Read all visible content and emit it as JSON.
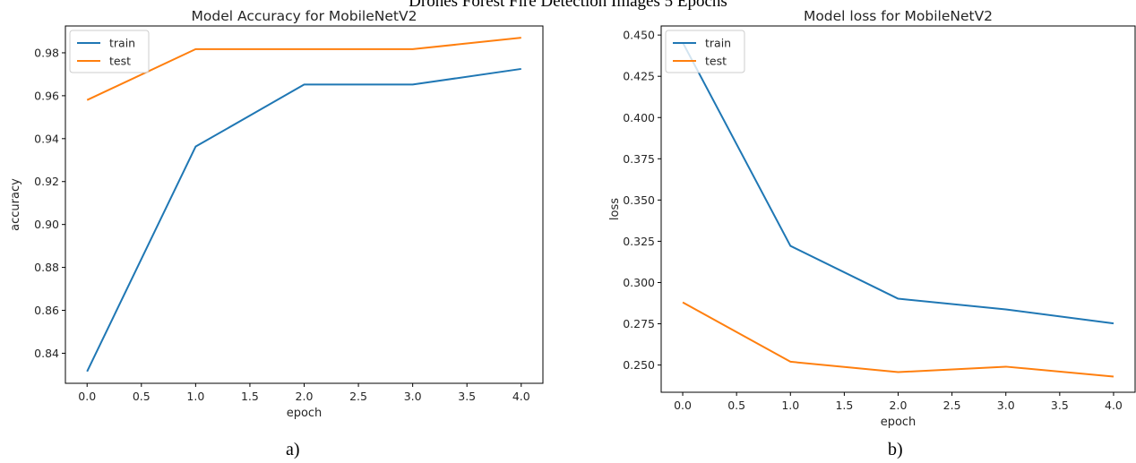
{
  "figure_title": "Drones Forest Fire Detection Images 5 Epochs",
  "captions": {
    "a": "a)",
    "b": "b)"
  },
  "colors": {
    "train": "#1f77b4",
    "test": "#ff7f0e"
  },
  "chart_data": [
    {
      "type": "line",
      "title": "Model Accuracy for MobileNetV2",
      "xlabel": "epoch",
      "ylabel": "accuracy",
      "x": [
        0,
        1,
        2,
        3,
        4
      ],
      "xlim": [
        -0.2,
        4.2
      ],
      "ylim": [
        0.826,
        0.9925
      ],
      "xticks": [
        0.0,
        0.5,
        1.0,
        1.5,
        2.0,
        2.5,
        3.0,
        3.5,
        4.0
      ],
      "xtick_labels": [
        "0.0",
        "0.5",
        "1.0",
        "1.5",
        "2.0",
        "2.5",
        "3.0",
        "3.5",
        "4.0"
      ],
      "yticks": [
        0.84,
        0.86,
        0.88,
        0.9,
        0.92,
        0.94,
        0.96,
        0.98
      ],
      "ytick_labels": [
        "0.84",
        "0.86",
        "0.88",
        "0.90",
        "0.92",
        "0.94",
        "0.96",
        "0.98"
      ],
      "series": [
        {
          "name": "train",
          "values": [
            0.8315,
            0.9363,
            0.9652,
            0.9652,
            0.9725
          ]
        },
        {
          "name": "test",
          "values": [
            0.958,
            0.9817,
            0.9817,
            0.9817,
            0.987
          ]
        }
      ],
      "legend": "upper left",
      "grid": false
    },
    {
      "type": "line",
      "title": "Model loss for MobileNetV2",
      "xlabel": "epoch",
      "ylabel": "loss",
      "x": [
        0,
        1,
        2,
        3,
        4
      ],
      "xlim": [
        -0.2,
        4.2
      ],
      "ylim": [
        0.2335,
        0.4555
      ],
      "xticks": [
        0.0,
        0.5,
        1.0,
        1.5,
        2.0,
        2.5,
        3.0,
        3.5,
        4.0
      ],
      "xtick_labels": [
        "0.0",
        "0.5",
        "1.0",
        "1.5",
        "2.0",
        "2.5",
        "3.0",
        "3.5",
        "4.0"
      ],
      "yticks": [
        0.25,
        0.275,
        0.3,
        0.325,
        0.35,
        0.375,
        0.4,
        0.425,
        0.45
      ],
      "ytick_labels": [
        "0.250",
        "0.275",
        "0.300",
        "0.325",
        "0.350",
        "0.375",
        "0.400",
        "0.425",
        "0.450"
      ],
      "series": [
        {
          "name": "train",
          "values": [
            0.4455,
            0.3222,
            0.2902,
            0.2837,
            0.2752
          ]
        },
        {
          "name": "test",
          "values": [
            0.288,
            0.252,
            0.2457,
            0.249,
            0.243
          ]
        }
      ],
      "legend": "upper left",
      "grid": false
    }
  ]
}
